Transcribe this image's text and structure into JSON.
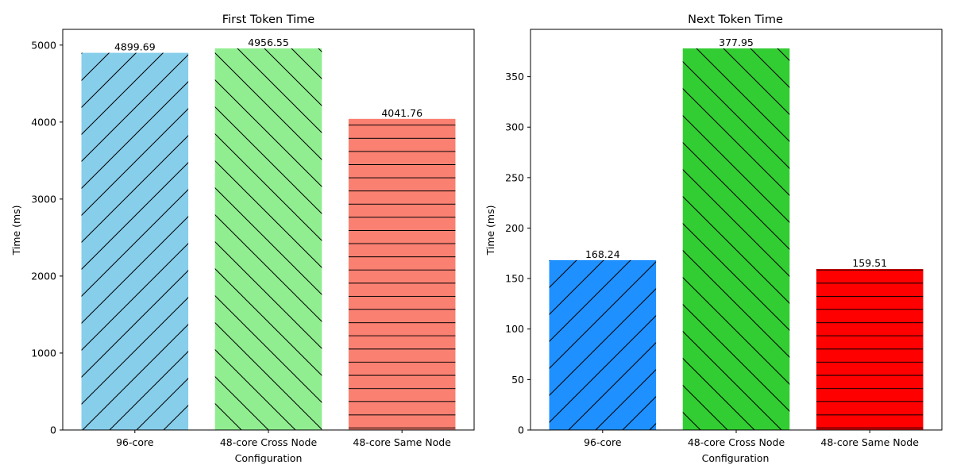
{
  "chart_data": [
    {
      "type": "bar",
      "title": "First Token Time",
      "xlabel": "Configuration",
      "ylabel": "Time (ms)",
      "categories": [
        "96-core",
        "48-core Cross Node",
        "48-core Same Node"
      ],
      "values": [
        4899.69,
        4956.55,
        4041.76
      ],
      "value_labels": [
        "4899.69",
        "4956.55",
        "4041.76"
      ],
      "colors": [
        "#87CEEB",
        "#90EE90",
        "#FA8072"
      ],
      "hatches": [
        "/",
        "\\",
        "-"
      ],
      "ylim": [
        0,
        5204.38
      ],
      "yticks": [
        0,
        1000,
        2000,
        3000,
        4000,
        5000
      ],
      "ytick_labels": [
        "0",
        "1000",
        "2000",
        "3000",
        "4000",
        "5000"
      ],
      "grid": false
    },
    {
      "type": "bar",
      "title": "Next Token Time",
      "xlabel": "Configuration",
      "ylabel": "Time (ms)",
      "categories": [
        "96-core",
        "48-core Cross Node",
        "48-core Same Node"
      ],
      "values": [
        168.24,
        377.95,
        159.51
      ],
      "value_labels": [
        "168.24",
        "377.95",
        "159.51"
      ],
      "colors": [
        "#1E90FF",
        "#32CD32",
        "#FF0000"
      ],
      "hatches": [
        "/",
        "\\",
        "-"
      ],
      "ylim": [
        0,
        396.85
      ],
      "yticks": [
        0,
        50,
        100,
        150,
        200,
        250,
        300,
        350
      ],
      "ytick_labels": [
        "0",
        "50",
        "100",
        "150",
        "200",
        "250",
        "300",
        "350"
      ],
      "grid": false
    }
  ]
}
